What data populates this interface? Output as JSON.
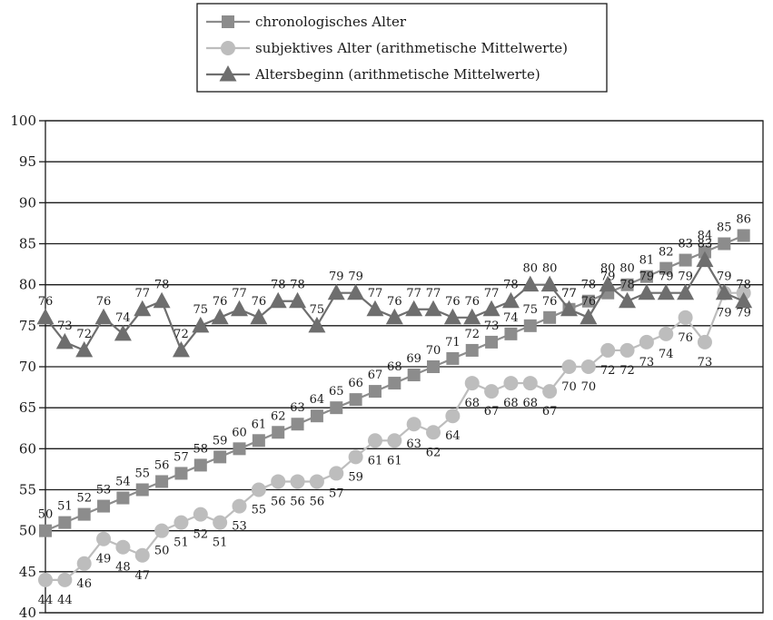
{
  "chart_data": {
    "type": "line",
    "title": "",
    "xlabel": "",
    "ylabel": "",
    "ylim": [
      40,
      100
    ],
    "yticks": [
      40,
      45,
      50,
      55,
      60,
      65,
      70,
      75,
      80,
      85,
      90,
      95,
      100
    ],
    "grid": "horizontal",
    "legend_position": "top",
    "series": [
      {
        "name": "chronologisches Alter",
        "marker": "square",
        "color": "#8c8c8c",
        "values": [
          50,
          51,
          52,
          53,
          54,
          55,
          56,
          57,
          58,
          59,
          60,
          61,
          62,
          63,
          64,
          65,
          66,
          67,
          68,
          69,
          70,
          71,
          72,
          73,
          74,
          75,
          76,
          77,
          78,
          79,
          80,
          81,
          82,
          83,
          84,
          85,
          86
        ]
      },
      {
        "name": "subjektives Alter (arithmetische Mittelwerte)",
        "marker": "circle",
        "color": "#bdbdbd",
        "values": [
          44,
          44,
          46,
          49,
          48,
          47,
          50,
          51,
          52,
          51,
          53,
          55,
          56,
          56,
          56,
          57,
          59,
          61,
          61,
          63,
          62,
          64,
          68,
          67,
          68,
          68,
          67,
          70,
          70,
          72,
          72,
          73,
          74,
          76,
          73,
          79,
          79
        ]
      },
      {
        "name": "Altersbeginn (arithmetische Mittelwerte)",
        "marker": "triangle",
        "color": "#6e6e6e",
        "values": [
          76,
          73,
          72,
          76,
          74,
          77,
          78,
          72,
          75,
          76,
          77,
          76,
          78,
          78,
          75,
          79,
          79,
          77,
          76,
          77,
          77,
          76,
          76,
          77,
          78,
          80,
          80,
          77,
          76,
          80,
          78,
          79,
          79,
          79,
          83,
          79,
          78
        ]
      }
    ]
  }
}
